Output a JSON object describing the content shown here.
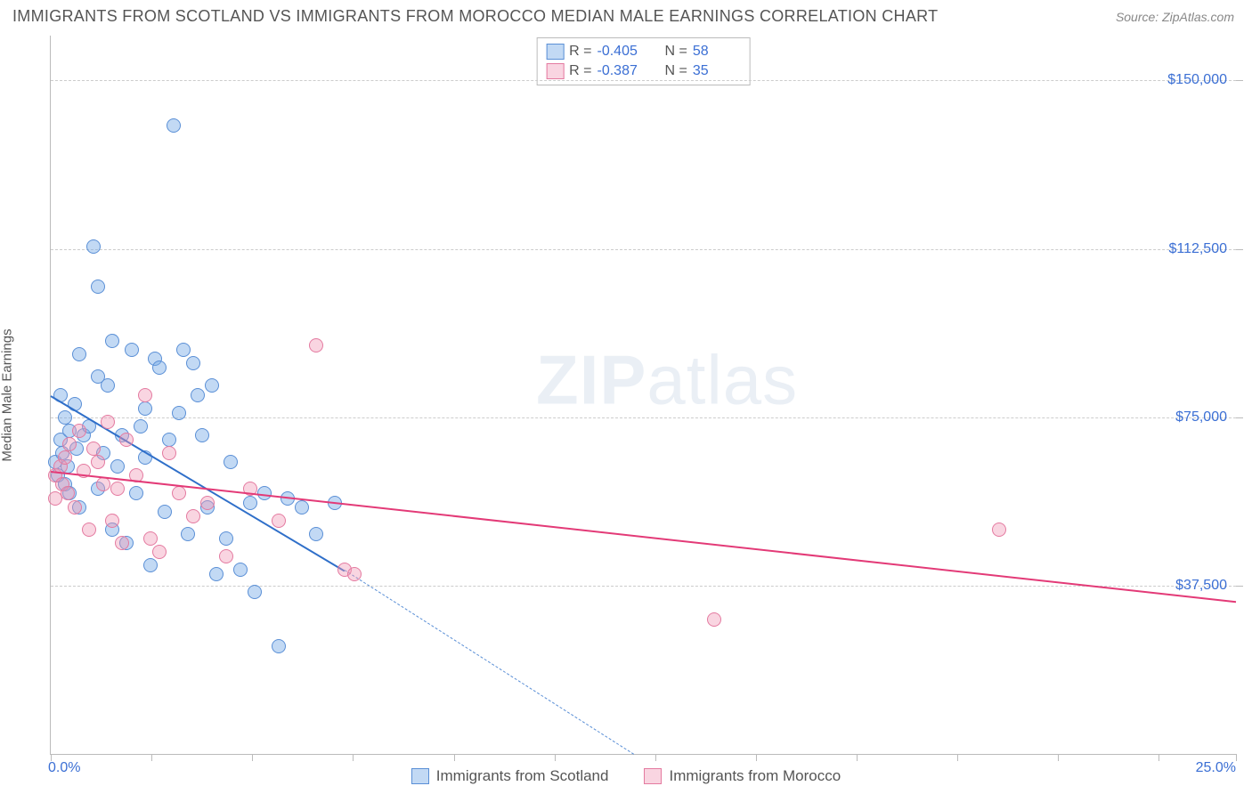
{
  "header": {
    "title": "IMMIGRANTS FROM SCOTLAND VS IMMIGRANTS FROM MOROCCO MEDIAN MALE EARNINGS CORRELATION CHART",
    "source_prefix": "Source: ",
    "source_name": "ZipAtlas.com"
  },
  "watermark": {
    "left": "ZIP",
    "right": "atlas"
  },
  "chart": {
    "type": "scatter",
    "ylabel": "Median Male Earnings",
    "background_color": "#ffffff",
    "grid_color": "#cccccc",
    "axis_color": "#bbbbbb",
    "tick_label_color": "#3b6fd4",
    "xlim": [
      0,
      25
    ],
    "ylim": [
      0,
      160000
    ],
    "x_axis": {
      "min_label": "0.0%",
      "max_label": "25.0%",
      "tick_positions_pct": [
        0,
        8.5,
        17,
        25.5,
        34,
        42.5,
        51,
        59.5,
        68,
        76.5,
        85,
        93.5,
        100
      ]
    },
    "y_axis": {
      "gridlines": [
        {
          "value": 37500,
          "label": "$37,500"
        },
        {
          "value": 75000,
          "label": "$75,000"
        },
        {
          "value": 112500,
          "label": "$112,500"
        },
        {
          "value": 150000,
          "label": "$150,000"
        }
      ],
      "right_tick_values": [
        37500,
        75000,
        112500,
        150000
      ]
    },
    "series": [
      {
        "id": "scotland",
        "label": "Immigrants from Scotland",
        "fill_color": "rgba(120,170,230,0.45)",
        "stroke_color": "#5a8fd6",
        "line_color": "#2f6fc9",
        "r_value": "-0.405",
        "n_value": "58",
        "trend": {
          "x1": 0,
          "y1": 80000,
          "x2": 6.2,
          "y2": 41000,
          "dash_x2": 12.3,
          "dash_y2": 0
        },
        "points": [
          {
            "x": 0.1,
            "y": 65000
          },
          {
            "x": 0.15,
            "y": 62000
          },
          {
            "x": 0.2,
            "y": 70000
          },
          {
            "x": 0.2,
            "y": 80000
          },
          {
            "x": 0.25,
            "y": 67000
          },
          {
            "x": 0.3,
            "y": 60000
          },
          {
            "x": 0.3,
            "y": 75000
          },
          {
            "x": 0.35,
            "y": 64000
          },
          {
            "x": 0.4,
            "y": 72000
          },
          {
            "x": 0.5,
            "y": 78000
          },
          {
            "x": 0.55,
            "y": 68000
          },
          {
            "x": 0.6,
            "y": 55000
          },
          {
            "x": 0.7,
            "y": 71000
          },
          {
            "x": 0.8,
            "y": 73000
          },
          {
            "x": 0.9,
            "y": 113000
          },
          {
            "x": 1.0,
            "y": 59000
          },
          {
            "x": 1.0,
            "y": 104000
          },
          {
            "x": 1.1,
            "y": 67000
          },
          {
            "x": 1.2,
            "y": 82000
          },
          {
            "x": 1.3,
            "y": 50000
          },
          {
            "x": 1.4,
            "y": 64000
          },
          {
            "x": 1.5,
            "y": 71000
          },
          {
            "x": 1.6,
            "y": 47000
          },
          {
            "x": 1.7,
            "y": 90000
          },
          {
            "x": 1.8,
            "y": 58000
          },
          {
            "x": 1.9,
            "y": 73000
          },
          {
            "x": 2.0,
            "y": 66000
          },
          {
            "x": 2.1,
            "y": 42000
          },
          {
            "x": 2.2,
            "y": 88000
          },
          {
            "x": 2.3,
            "y": 86000
          },
          {
            "x": 2.4,
            "y": 54000
          },
          {
            "x": 2.5,
            "y": 70000
          },
          {
            "x": 2.6,
            "y": 140000
          },
          {
            "x": 2.7,
            "y": 76000
          },
          {
            "x": 2.8,
            "y": 90000
          },
          {
            "x": 2.9,
            "y": 49000
          },
          {
            "x": 3.0,
            "y": 87000
          },
          {
            "x": 3.1,
            "y": 80000
          },
          {
            "x": 3.2,
            "y": 71000
          },
          {
            "x": 3.3,
            "y": 55000
          },
          {
            "x": 3.4,
            "y": 82000
          },
          {
            "x": 3.5,
            "y": 40000
          },
          {
            "x": 3.7,
            "y": 48000
          },
          {
            "x": 3.8,
            "y": 65000
          },
          {
            "x": 4.0,
            "y": 41000
          },
          {
            "x": 4.2,
            "y": 56000
          },
          {
            "x": 4.3,
            "y": 36000
          },
          {
            "x": 4.5,
            "y": 58000
          },
          {
            "x": 4.8,
            "y": 24000
          },
          {
            "x": 5.0,
            "y": 57000
          },
          {
            "x": 5.3,
            "y": 55000
          },
          {
            "x": 5.6,
            "y": 49000
          },
          {
            "x": 6.0,
            "y": 56000
          },
          {
            "x": 1.0,
            "y": 84000
          },
          {
            "x": 1.3,
            "y": 92000
          },
          {
            "x": 0.6,
            "y": 89000
          },
          {
            "x": 2.0,
            "y": 77000
          },
          {
            "x": 0.4,
            "y": 58000
          }
        ]
      },
      {
        "id": "morocco",
        "label": "Immigrants from Morocco",
        "fill_color": "rgba(240,150,180,0.40)",
        "stroke_color": "#e47aa0",
        "line_color": "#e33a77",
        "r_value": "-0.387",
        "n_value": "35",
        "trend": {
          "x1": 0,
          "y1": 63000,
          "x2": 25,
          "y2": 34000,
          "dash_x2": 25,
          "dash_y2": 34000
        },
        "points": [
          {
            "x": 0.1,
            "y": 62000
          },
          {
            "x": 0.1,
            "y": 57000
          },
          {
            "x": 0.2,
            "y": 64000
          },
          {
            "x": 0.25,
            "y": 60000
          },
          {
            "x": 0.3,
            "y": 66000
          },
          {
            "x": 0.35,
            "y": 58000
          },
          {
            "x": 0.4,
            "y": 69000
          },
          {
            "x": 0.5,
            "y": 55000
          },
          {
            "x": 0.6,
            "y": 72000
          },
          {
            "x": 0.7,
            "y": 63000
          },
          {
            "x": 0.8,
            "y": 50000
          },
          {
            "x": 0.9,
            "y": 68000
          },
          {
            "x": 1.0,
            "y": 65000
          },
          {
            "x": 1.1,
            "y": 60000
          },
          {
            "x": 1.2,
            "y": 74000
          },
          {
            "x": 1.3,
            "y": 52000
          },
          {
            "x": 1.4,
            "y": 59000
          },
          {
            "x": 1.5,
            "y": 47000
          },
          {
            "x": 1.6,
            "y": 70000
          },
          {
            "x": 1.8,
            "y": 62000
          },
          {
            "x": 2.0,
            "y": 80000
          },
          {
            "x": 2.1,
            "y": 48000
          },
          {
            "x": 2.3,
            "y": 45000
          },
          {
            "x": 2.5,
            "y": 67000
          },
          {
            "x": 2.7,
            "y": 58000
          },
          {
            "x": 3.0,
            "y": 53000
          },
          {
            "x": 3.3,
            "y": 56000
          },
          {
            "x": 3.7,
            "y": 44000
          },
          {
            "x": 4.2,
            "y": 59000
          },
          {
            "x": 4.8,
            "y": 52000
          },
          {
            "x": 5.6,
            "y": 91000
          },
          {
            "x": 6.2,
            "y": 41000
          },
          {
            "x": 6.4,
            "y": 40000
          },
          {
            "x": 14.0,
            "y": 30000
          },
          {
            "x": 20.0,
            "y": 50000
          }
        ]
      }
    ],
    "corr_legend_labels": {
      "r": "R =",
      "n": "N ="
    }
  },
  "bottom_legend": {
    "items": [
      {
        "series": "scotland"
      },
      {
        "series": "morocco"
      }
    ]
  }
}
